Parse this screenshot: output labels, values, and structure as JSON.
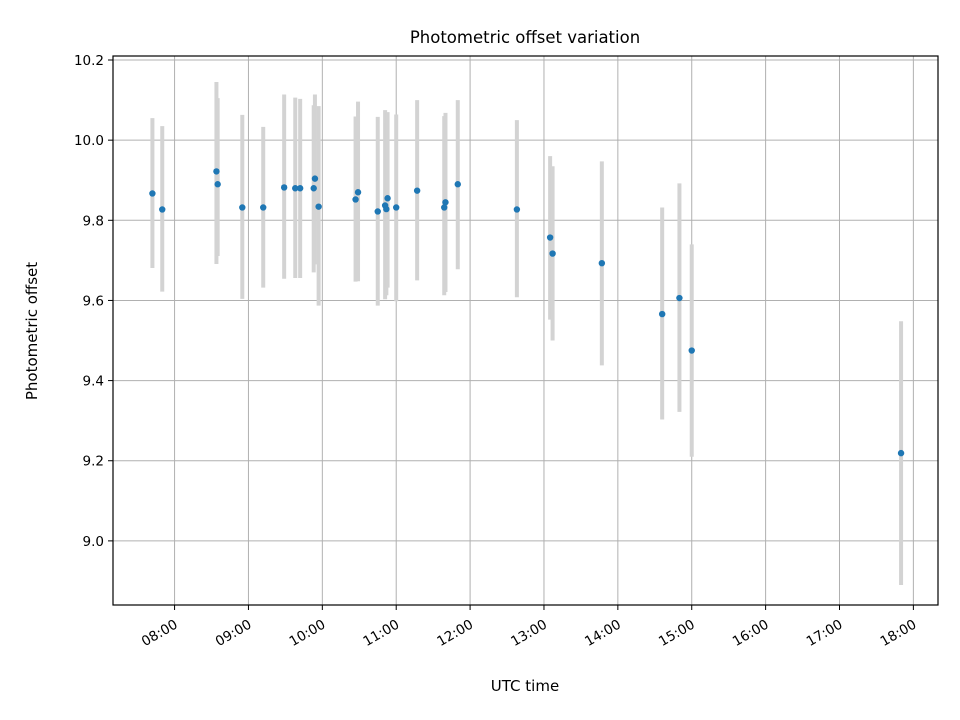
{
  "chart_data": {
    "type": "scatter",
    "title": "Photometric offset variation",
    "xlabel": "UTC time",
    "ylabel": "Photometric offset",
    "xlim": [
      "07:10",
      "18:20"
    ],
    "ylim": [
      8.84,
      10.21
    ],
    "x_ticks": [
      "08:00",
      "09:00",
      "10:00",
      "11:00",
      "12:00",
      "13:00",
      "14:00",
      "15:00",
      "16:00",
      "17:00",
      "18:00"
    ],
    "y_ticks": [
      9.0,
      9.2,
      9.4,
      9.6,
      9.8,
      10.0,
      10.2
    ],
    "grid": true,
    "marker_color": "#1f77b4",
    "errorbar_color": "#d3d3d3",
    "points": [
      {
        "time": "07:42",
        "value": 9.867,
        "low": 9.681,
        "high": 10.055
      },
      {
        "time": "07:50",
        "value": 9.827,
        "low": 9.622,
        "high": 10.035
      },
      {
        "time": "08:34",
        "value": 9.922,
        "low": 9.691,
        "high": 10.145
      },
      {
        "time": "08:35",
        "value": 9.89,
        "low": 9.711,
        "high": 10.105
      },
      {
        "time": "08:55",
        "value": 9.832,
        "low": 9.604,
        "high": 10.063
      },
      {
        "time": "09:12",
        "value": 9.832,
        "low": 9.632,
        "high": 10.033
      },
      {
        "time": "09:29",
        "value": 9.882,
        "low": 9.654,
        "high": 10.114
      },
      {
        "time": "09:38",
        "value": 9.88,
        "low": 9.656,
        "high": 10.106
      },
      {
        "time": "09:42",
        "value": 9.88,
        "low": 9.656,
        "high": 10.103
      },
      {
        "time": "09:53",
        "value": 9.88,
        "low": 9.67,
        "high": 10.087
      },
      {
        "time": "09:54",
        "value": 9.904,
        "low": 9.69,
        "high": 10.114
      },
      {
        "time": "09:57",
        "value": 9.834,
        "low": 9.587,
        "high": 10.085
      },
      {
        "time": "10:27",
        "value": 9.852,
        "low": 9.647,
        "high": 10.059
      },
      {
        "time": "10:29",
        "value": 9.87,
        "low": 9.648,
        "high": 10.096
      },
      {
        "time": "10:45",
        "value": 9.822,
        "low": 9.587,
        "high": 10.058
      },
      {
        "time": "10:51",
        "value": 9.837,
        "low": 9.603,
        "high": 10.075
      },
      {
        "time": "10:52",
        "value": 9.828,
        "low": 9.613,
        "high": 10.044
      },
      {
        "time": "10:53",
        "value": 9.855,
        "low": 9.632,
        "high": 10.07
      },
      {
        "time": "11:00",
        "value": 9.832,
        "low": 9.598,
        "high": 10.064
      },
      {
        "time": "11:17",
        "value": 9.874,
        "low": 9.65,
        "high": 10.1
      },
      {
        "time": "11:39",
        "value": 9.832,
        "low": 9.613,
        "high": 10.06
      },
      {
        "time": "11:40",
        "value": 9.845,
        "low": 9.621,
        "high": 10.068
      },
      {
        "time": "11:50",
        "value": 9.89,
        "low": 9.678,
        "high": 10.1
      },
      {
        "time": "12:38",
        "value": 9.827,
        "low": 9.608,
        "high": 10.05
      },
      {
        "time": "13:05",
        "value": 9.757,
        "low": 9.552,
        "high": 9.96
      },
      {
        "time": "13:07",
        "value": 9.717,
        "low": 9.5,
        "high": 9.935
      },
      {
        "time": "13:47",
        "value": 9.693,
        "low": 9.438,
        "high": 9.947
      },
      {
        "time": "14:36",
        "value": 9.566,
        "low": 9.303,
        "high": 9.832
      },
      {
        "time": "14:50",
        "value": 9.606,
        "low": 9.322,
        "high": 9.892
      },
      {
        "time": "15:00",
        "value": 9.475,
        "low": 9.21,
        "high": 9.74
      },
      {
        "time": "17:50",
        "value": 9.219,
        "low": 8.89,
        "high": 9.548
      }
    ]
  }
}
